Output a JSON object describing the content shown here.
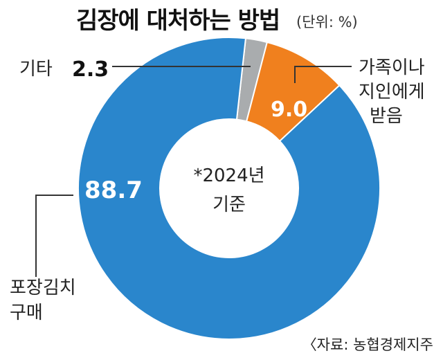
{
  "header": {
    "title": "김장에 대처하는 방법",
    "unit": "(단위: %)"
  },
  "center_note": {
    "line1": "*2024년",
    "line2": "기준"
  },
  "source": "〈자료: 농협경제지주",
  "colors": {
    "main": "#2a86cc",
    "family": "#f0801e",
    "other": "#a9acae",
    "leader": "#333333"
  },
  "chart_data": {
    "type": "pie",
    "subtype": "donut",
    "title": "김장에 대처하는 방법",
    "unit": "%",
    "legend": "none",
    "slices": [
      {
        "label_lines": [
          "기타"
        ],
        "value": 2.3,
        "value_label": "2.3"
      },
      {
        "label_lines": [
          "가족이나",
          "지인에게",
          "받음"
        ],
        "value": 9.0,
        "value_label": "9.0"
      },
      {
        "label_lines": [
          "포장김치",
          "구매"
        ],
        "value": 88.7,
        "value_label": "88.7"
      }
    ]
  }
}
